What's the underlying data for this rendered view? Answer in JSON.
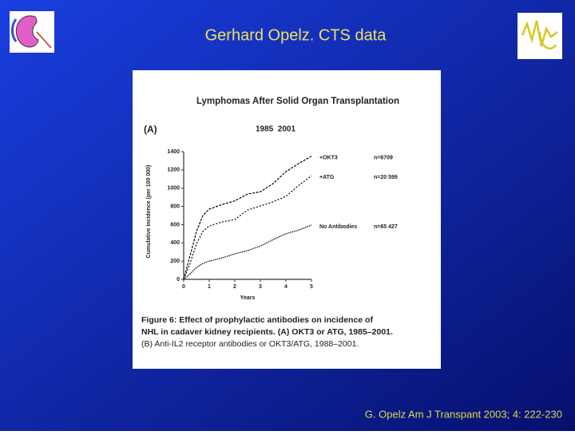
{
  "slide": {
    "title": "Gerhard Opelz. CTS data",
    "citation": "G. Opelz Am J Transpant 2003; 4: 222-230"
  },
  "chart_data": {
    "type": "line",
    "title": "Lymphomas After Solid Organ Transplantation",
    "panel_label": "(A)",
    "subtitle": "1985  2001",
    "xlabel": "Years",
    "ylabel": "Cumulative incidence (per 100 000)",
    "x": [
      0,
      0.25,
      0.5,
      0.75,
      1,
      1.5,
      2,
      2.5,
      3,
      3.5,
      4,
      4.5,
      5
    ],
    "series": [
      {
        "name": "+OKT3",
        "n_label": "n=6709",
        "color": "#000000",
        "values": [
          0,
          260,
          525,
          700,
          770,
          820,
          860,
          935,
          960,
          1050,
          1180,
          1270,
          1350
        ]
      },
      {
        "name": "+ATG",
        "n_label": "n=20 599",
        "color": "#000000",
        "values": [
          0,
          175,
          390,
          525,
          585,
          630,
          655,
          760,
          805,
          850,
          910,
          1030,
          1135
        ]
      },
      {
        "name": "No Antibodies",
        "n_label": "n=65 427",
        "color": "#000000",
        "values": [
          0,
          60,
          130,
          175,
          200,
          235,
          280,
          315,
          365,
          435,
          500,
          540,
          595
        ]
      }
    ],
    "xlim": [
      0,
      5
    ],
    "xticks": [
      0,
      1,
      2,
      3,
      4,
      5
    ],
    "ylim": [
      0,
      1400
    ],
    "yticks": [
      0,
      200,
      400,
      600,
      800,
      1000,
      1200,
      1400
    ],
    "caption": [
      "Figure 6: Effect of prophylactic antibodies on incidence of",
      "NHL in cadaver kidney recipients. (A) OKT3 or ATG, 1985–2001.",
      "(B) Anti-IL2 receptor antibodies or OKT3/ATG, 1988–2001."
    ]
  }
}
